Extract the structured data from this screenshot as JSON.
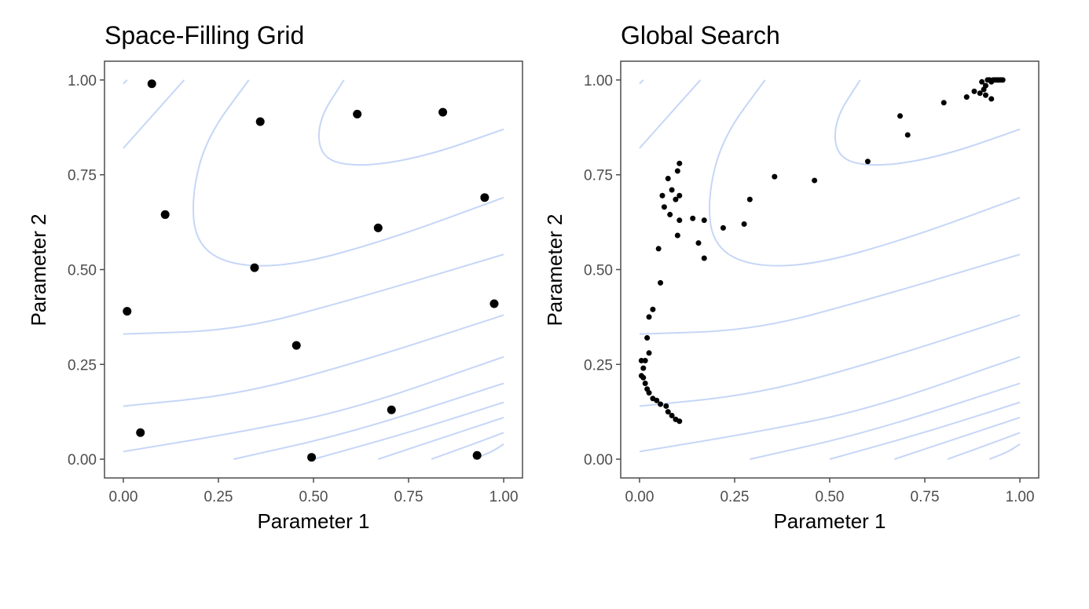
{
  "figure": {
    "contour_color": "#c6d6f7",
    "point_color": "#000000",
    "panel_border_color": "#4d4d4d",
    "tick_label_color": "#4d4d4d",
    "title_color": "#000000"
  },
  "chart_data": [
    {
      "type": "scatter",
      "title": "Space-Filling Grid",
      "xlabel": "Parameter 1",
      "ylabel": "Parameter 2",
      "xlim": [
        0,
        1
      ],
      "ylim": [
        0,
        1
      ],
      "xticks": [
        "0.00",
        "0.25",
        "0.50",
        "0.75",
        "1.00"
      ],
      "yticks": [
        "0.00",
        "0.25",
        "0.50",
        "0.75",
        "1.00"
      ],
      "tick_values": [
        0,
        0.25,
        0.5,
        0.75,
        1
      ],
      "grid": false,
      "background_contours": true,
      "points": [
        [
          0.075,
          0.99
        ],
        [
          0.36,
          0.89
        ],
        [
          0.615,
          0.91
        ],
        [
          0.84,
          0.915
        ],
        [
          0.11,
          0.645
        ],
        [
          0.67,
          0.61
        ],
        [
          0.95,
          0.69
        ],
        [
          0.345,
          0.505
        ],
        [
          0.01,
          0.39
        ],
        [
          0.975,
          0.41
        ],
        [
          0.455,
          0.3
        ],
        [
          0.705,
          0.13
        ],
        [
          0.045,
          0.07
        ],
        [
          0.495,
          0.005
        ],
        [
          0.93,
          0.01
        ]
      ]
    },
    {
      "type": "scatter",
      "title": "Global Search",
      "xlabel": "Parameter 1",
      "ylabel": "Parameter 2",
      "xlim": [
        0,
        1
      ],
      "ylim": [
        0,
        1
      ],
      "xticks": [
        "0.00",
        "0.25",
        "0.50",
        "0.75",
        "1.00"
      ],
      "yticks": [
        "0.00",
        "0.25",
        "0.50",
        "0.75",
        "1.00"
      ],
      "tick_values": [
        0,
        0.25,
        0.5,
        0.75,
        1
      ],
      "grid": false,
      "background_contours": true,
      "points": [
        [
          0.105,
          0.1
        ],
        [
          0.095,
          0.105
        ],
        [
          0.085,
          0.115
        ],
        [
          0.075,
          0.125
        ],
        [
          0.07,
          0.14
        ],
        [
          0.055,
          0.145
        ],
        [
          0.045,
          0.155
        ],
        [
          0.035,
          0.16
        ],
        [
          0.025,
          0.175
        ],
        [
          0.02,
          0.185
        ],
        [
          0.015,
          0.2
        ],
        [
          0.01,
          0.215
        ],
        [
          0.005,
          0.22
        ],
        [
          0.01,
          0.24
        ],
        [
          0.015,
          0.26
        ],
        [
          0.005,
          0.26
        ],
        [
          0.025,
          0.28
        ],
        [
          0.02,
          0.32
        ],
        [
          0.025,
          0.375
        ],
        [
          0.035,
          0.395
        ],
        [
          0.055,
          0.465
        ],
        [
          0.05,
          0.555
        ],
        [
          0.1,
          0.59
        ],
        [
          0.105,
          0.63
        ],
        [
          0.08,
          0.645
        ],
        [
          0.065,
          0.665
        ],
        [
          0.06,
          0.695
        ],
        [
          0.085,
          0.71
        ],
        [
          0.095,
          0.685
        ],
        [
          0.105,
          0.695
        ],
        [
          0.075,
          0.74
        ],
        [
          0.1,
          0.76
        ],
        [
          0.105,
          0.78
        ],
        [
          0.14,
          0.635
        ],
        [
          0.17,
          0.63
        ],
        [
          0.155,
          0.57
        ],
        [
          0.17,
          0.53
        ],
        [
          0.22,
          0.61
        ],
        [
          0.275,
          0.62
        ],
        [
          0.29,
          0.685
        ],
        [
          0.355,
          0.745
        ],
        [
          0.46,
          0.735
        ],
        [
          0.6,
          0.785
        ],
        [
          0.685,
          0.905
        ],
        [
          0.705,
          0.855
        ],
        [
          0.8,
          0.94
        ],
        [
          0.86,
          0.955
        ],
        [
          0.88,
          0.97
        ],
        [
          0.895,
          0.965
        ],
        [
          0.905,
          0.975
        ],
        [
          0.91,
          0.985
        ],
        [
          0.915,
          1.0
        ],
        [
          0.92,
          1.0
        ],
        [
          0.925,
          0.995
        ],
        [
          0.93,
          1.0
        ],
        [
          0.935,
          1.0
        ],
        [
          0.94,
          1.0
        ],
        [
          0.945,
          1.0
        ],
        [
          0.95,
          1.0
        ],
        [
          0.955,
          1.0
        ],
        [
          0.9,
          0.995
        ],
        [
          0.925,
          0.95
        ],
        [
          0.91,
          0.96
        ]
      ]
    }
  ]
}
